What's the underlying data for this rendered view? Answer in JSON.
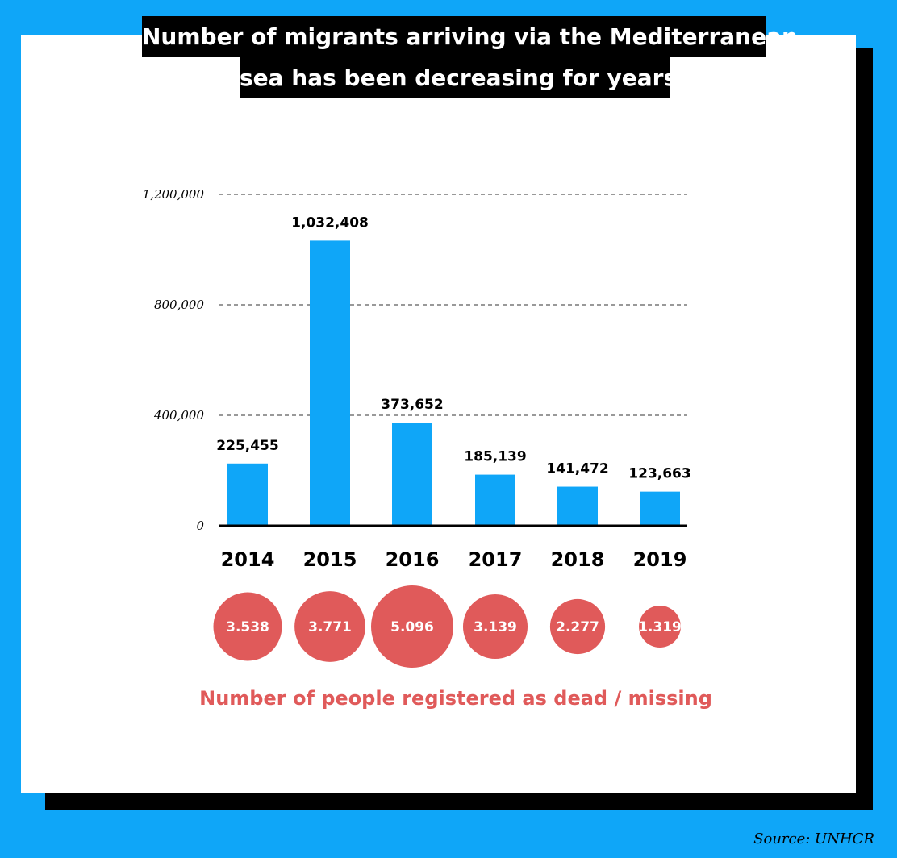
{
  "title": {
    "line1": "Number of migrants arriving via the Mediterranean",
    "line2": "sea has been decreasing for years"
  },
  "chart_data": {
    "type": "bar",
    "categories": [
      "2014",
      "2015",
      "2016",
      "2017",
      "2018",
      "2019"
    ],
    "values": [
      225455,
      1032408,
      373652,
      185139,
      141472,
      123663
    ],
    "value_labels": [
      "225,455",
      "1,032,408",
      "373,652",
      "185,139",
      "141,472",
      "123,663"
    ],
    "ylim": [
      0,
      1200000
    ],
    "yticks": [
      0,
      400000,
      800000,
      1200000
    ],
    "ytick_labels": [
      "0",
      "400,000",
      "800,000",
      "1,200,000"
    ],
    "grid": true,
    "bar_color": "#0fa6f8",
    "deaths": {
      "label": "Number of people registered as dead / missing",
      "values": [
        3538,
        3771,
        5096,
        3139,
        2277,
        1319
      ],
      "value_labels": [
        "3.538",
        "3.771",
        "5.096",
        "3.139",
        "2.277",
        "1.319"
      ],
      "color": "#e05a5a"
    }
  },
  "source": "Source: UNHCR",
  "colors": {
    "background": "#0fa6f8",
    "card": "#ffffff",
    "bars": "#0fa6f8",
    "deaths": "#e05a5a"
  }
}
